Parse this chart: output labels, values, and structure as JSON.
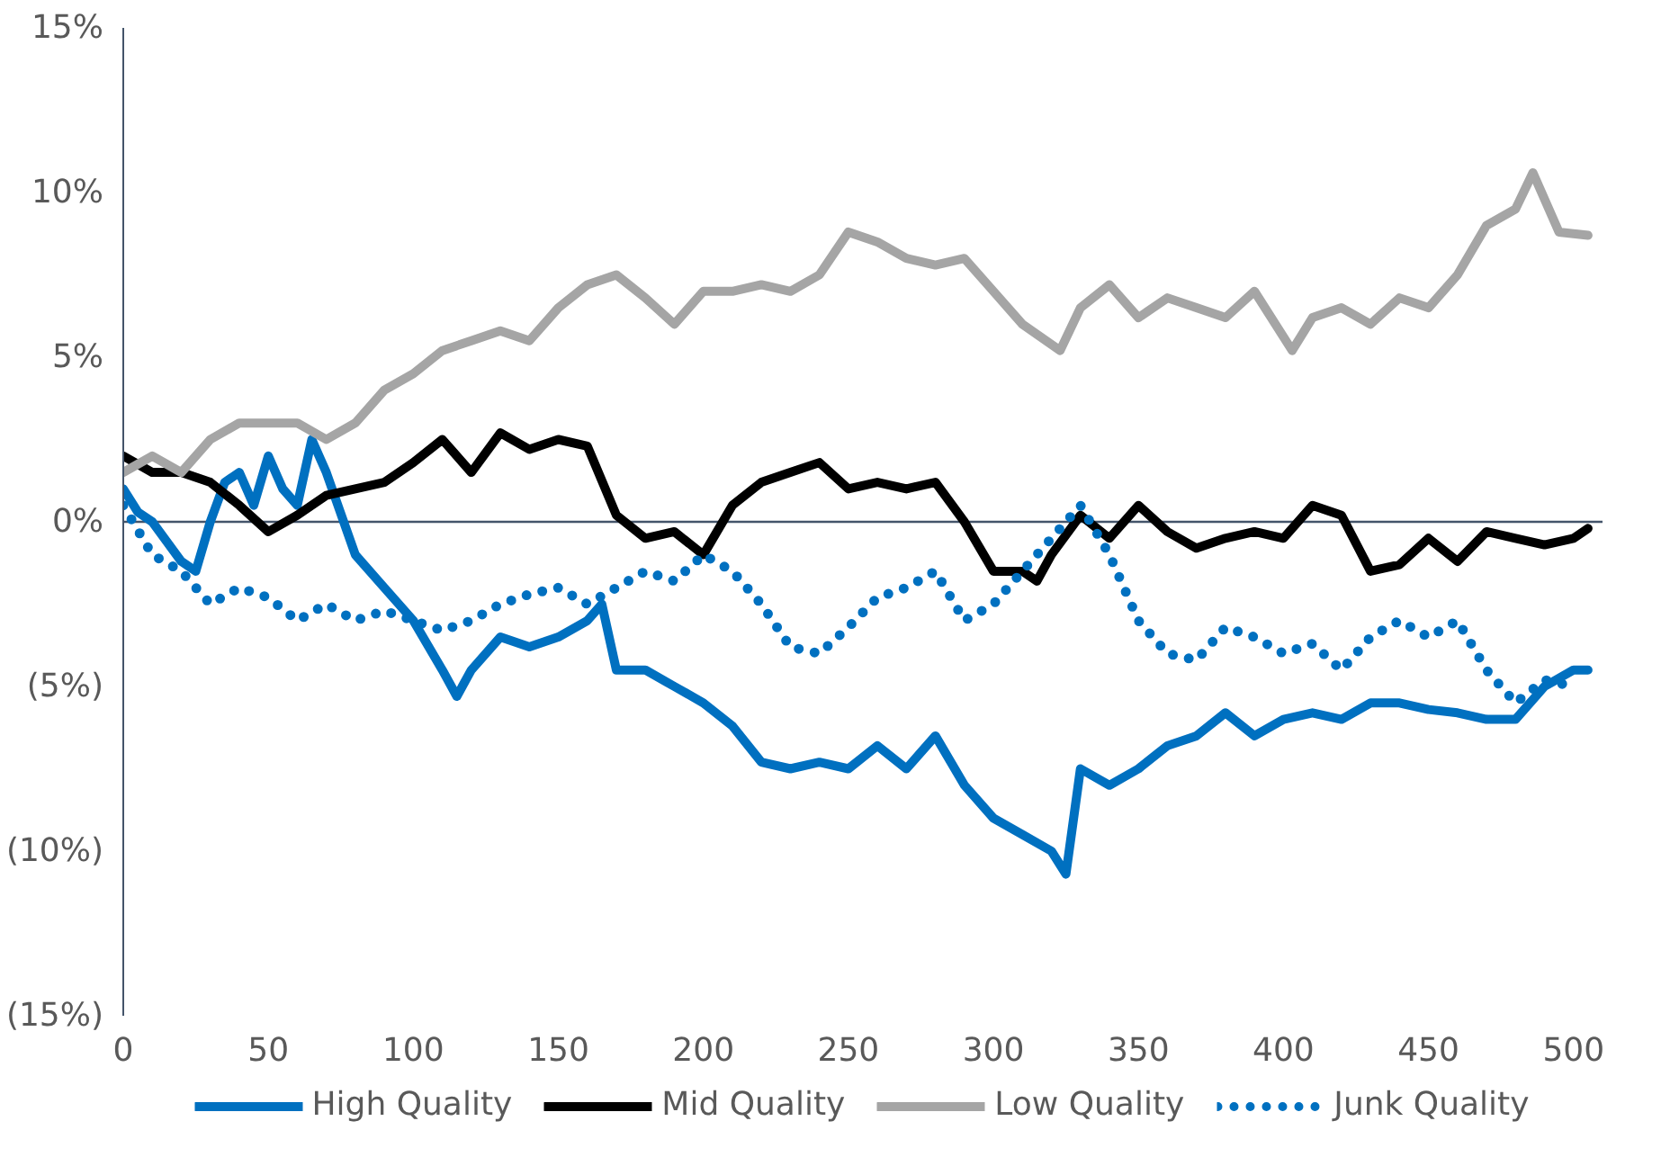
{
  "chart_data": {
    "type": "line",
    "ylim": [
      -15,
      15
    ],
    "yticks": [
      {
        "value": 15,
        "label": "15%"
      },
      {
        "value": 10,
        "label": "10%"
      },
      {
        "value": 5,
        "label": "5%"
      },
      {
        "value": 0,
        "label": "0%"
      },
      {
        "value": -5,
        "label": "(5%)"
      },
      {
        "value": -10,
        "label": "(10%)"
      },
      {
        "value": -15,
        "label": "(15%)"
      }
    ],
    "xlim": [
      0,
      510
    ],
    "xticks": [
      0,
      50,
      100,
      150,
      200,
      250,
      300,
      350,
      400,
      450,
      500
    ],
    "grid": false,
    "legend": "bottom",
    "ref_lines": [
      {
        "axis": "y",
        "value": 0,
        "color": "#44546a"
      }
    ],
    "series": [
      {
        "name": "High Quality",
        "color": "#0070c0",
        "line_style": "solid",
        "x": [
          0,
          5,
          10,
          20,
          25,
          30,
          35,
          40,
          45,
          50,
          55,
          60,
          65,
          70,
          80,
          90,
          100,
          110,
          115,
          120,
          130,
          140,
          150,
          160,
          165,
          170,
          180,
          190,
          200,
          210,
          220,
          230,
          240,
          250,
          260,
          270,
          280,
          290,
          300,
          310,
          320,
          325,
          330,
          340,
          350,
          360,
          370,
          380,
          390,
          400,
          410,
          420,
          430,
          440,
          450,
          460,
          470,
          480,
          490,
          500,
          505
        ],
        "values": [
          1.0,
          0.3,
          0.0,
          -1.2,
          -1.5,
          0.0,
          1.2,
          1.5,
          0.5,
          2.0,
          1.0,
          0.5,
          2.5,
          1.5,
          -1.0,
          -2.0,
          -3.0,
          -4.5,
          -5.3,
          -4.5,
          -3.5,
          -3.8,
          -3.5,
          -3.0,
          -2.5,
          -4.5,
          -4.5,
          -5.0,
          -5.5,
          -6.2,
          -7.3,
          -7.5,
          -7.3,
          -7.5,
          -6.8,
          -7.5,
          -6.5,
          -8.0,
          -9.0,
          -9.5,
          -10.0,
          -10.7,
          -7.5,
          -8.0,
          -7.5,
          -6.8,
          -6.5,
          -5.8,
          -6.5,
          -6.0,
          -5.8,
          -6.0,
          -5.5,
          -5.5,
          -5.7,
          -5.8,
          -6.0,
          -6.0,
          -5.0,
          -4.5,
          -4.5
        ]
      },
      {
        "name": "Mid Quality",
        "color": "#000000",
        "line_style": "solid",
        "x": [
          0,
          10,
          20,
          30,
          40,
          50,
          60,
          70,
          80,
          90,
          100,
          110,
          120,
          130,
          140,
          150,
          160,
          170,
          180,
          190,
          200,
          210,
          220,
          230,
          240,
          250,
          260,
          270,
          280,
          290,
          300,
          310,
          315,
          320,
          330,
          340,
          350,
          360,
          370,
          380,
          390,
          400,
          410,
          420,
          430,
          440,
          450,
          460,
          470,
          480,
          490,
          500,
          505
        ],
        "values": [
          2.0,
          1.5,
          1.5,
          1.2,
          0.5,
          -0.3,
          0.2,
          0.8,
          1.0,
          1.2,
          1.8,
          2.5,
          1.5,
          2.7,
          2.2,
          2.5,
          2.3,
          0.2,
          -0.5,
          -0.3,
          -1.0,
          0.5,
          1.2,
          1.5,
          1.8,
          1.0,
          1.2,
          1.0,
          1.2,
          0.0,
          -1.5,
          -1.5,
          -1.8,
          -1.0,
          0.2,
          -0.5,
          0.5,
          -0.3,
          -0.8,
          -0.5,
          -0.3,
          -0.5,
          0.5,
          0.2,
          -1.5,
          -1.3,
          -0.5,
          -1.2,
          -0.3,
          -0.5,
          -0.7,
          -0.5,
          -0.2
        ]
      },
      {
        "name": "Low Quality",
        "color": "#a5a5a5",
        "line_style": "solid",
        "x": [
          0,
          10,
          20,
          30,
          40,
          50,
          60,
          70,
          80,
          90,
          100,
          110,
          120,
          130,
          140,
          150,
          160,
          170,
          180,
          190,
          200,
          210,
          220,
          230,
          240,
          250,
          260,
          270,
          280,
          290,
          300,
          310,
          323,
          330,
          340,
          350,
          360,
          370,
          380,
          390,
          403,
          410,
          420,
          430,
          440,
          450,
          460,
          470,
          480,
          486,
          495,
          505
        ],
        "values": [
          1.5,
          2.0,
          1.5,
          2.5,
          3.0,
          3.0,
          3.0,
          2.5,
          3.0,
          4.0,
          4.5,
          5.2,
          5.5,
          5.8,
          5.5,
          6.5,
          7.2,
          7.5,
          6.8,
          6.0,
          7.0,
          7.0,
          7.2,
          7.0,
          7.5,
          8.8,
          8.5,
          8.0,
          7.8,
          8.0,
          7.0,
          6.0,
          5.2,
          6.5,
          7.2,
          6.2,
          6.8,
          6.5,
          6.2,
          7.0,
          5.2,
          6.2,
          6.5,
          6.0,
          6.8,
          6.5,
          7.5,
          9.0,
          9.5,
          10.6,
          8.8,
          8.7
        ]
      },
      {
        "name": "Junk Quality",
        "color": "#0070c0",
        "line_style": "dotted",
        "x": [
          0,
          10,
          20,
          30,
          40,
          50,
          60,
          70,
          80,
          90,
          100,
          110,
          120,
          130,
          140,
          150,
          160,
          170,
          180,
          190,
          200,
          210,
          220,
          230,
          240,
          250,
          260,
          270,
          280,
          290,
          300,
          310,
          320,
          330,
          340,
          350,
          360,
          370,
          380,
          390,
          400,
          410,
          420,
          430,
          440,
          450,
          460,
          470,
          480,
          490,
          500
        ],
        "values": [
          0.5,
          -1.0,
          -1.5,
          -2.5,
          -2.0,
          -2.3,
          -3.0,
          -2.5,
          -3.0,
          -2.7,
          -3.0,
          -3.3,
          -3.0,
          -2.5,
          -2.2,
          -2.0,
          -2.5,
          -2.0,
          -1.5,
          -1.8,
          -1.0,
          -1.5,
          -2.5,
          -3.8,
          -4.0,
          -3.2,
          -2.3,
          -2.0,
          -1.5,
          -3.0,
          -2.5,
          -1.5,
          -0.5,
          0.5,
          -1.0,
          -3.0,
          -4.0,
          -4.2,
          -3.2,
          -3.5,
          -4.0,
          -3.7,
          -4.5,
          -3.5,
          -3.0,
          -3.5,
          -3.0,
          -4.5,
          -5.5,
          -4.8,
          -5.0
        ]
      }
    ]
  }
}
